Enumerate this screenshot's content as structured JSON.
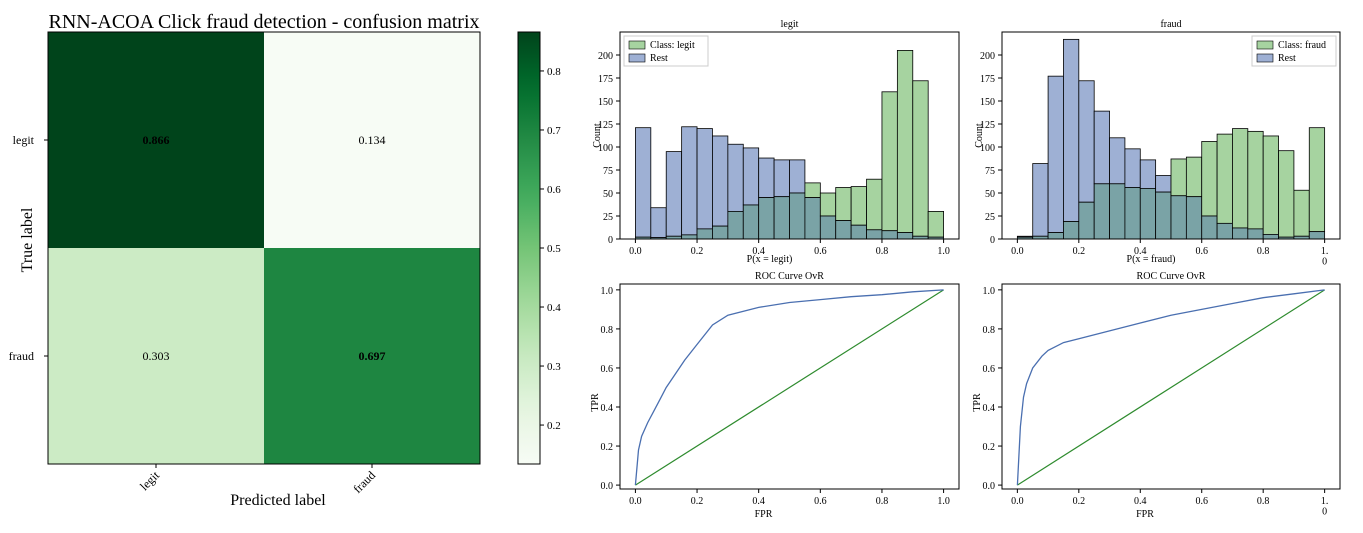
{
  "colors": {
    "legit_fill": "#a6d3a0",
    "rest_fill": "#9eb0d4",
    "overlap_fill": "#7aa3a6",
    "roc_line": "#4a6fb0",
    "diag_line": "#2e8b2e",
    "cm_low": "#f5fbf3",
    "cm_high": "#00441b"
  },
  "chart_data": [
    {
      "type": "heatmap",
      "title": "RNN-ACOA Click fraud detection -  confusion matrix",
      "xlabel": "Predicted label",
      "ylabel": "True label",
      "x_categories": [
        "legit",
        "fraud"
      ],
      "y_categories": [
        "legit",
        "fraud"
      ],
      "values": [
        [
          0.866,
          0.134
        ],
        [
          0.303,
          0.697
        ]
      ],
      "cell_labels": [
        [
          "0.866",
          "0.134"
        ],
        [
          "0.303",
          "0.697"
        ]
      ],
      "colorbar": {
        "range": [
          0.134,
          0.866
        ],
        "ticks": [
          0.2,
          0.3,
          0.4,
          0.5,
          0.6,
          0.7,
          0.8
        ],
        "tick_labels": [
          "0.2",
          "0.3",
          "0.4",
          "0.5",
          "0.6",
          "0.7",
          "0.8"
        ],
        "colormap": "Greens"
      }
    },
    {
      "type": "bar",
      "title": "legit",
      "xlabel": "P(x = legit)",
      "ylabel": "Count",
      "xlim": [
        -0.05,
        1.05
      ],
      "ylim": [
        0,
        2250
      ],
      "x_ticks": [
        0,
        0.2,
        0.4,
        0.6,
        0.8,
        1
      ],
      "x_tick_labels": [
        "0.0",
        "0.2",
        "0.4",
        "0.6",
        "0.8",
        "1.0"
      ],
      "y_ticks": [
        0,
        25,
        50,
        75,
        100,
        125,
        150,
        175,
        200
      ],
      "y_tick_labels": [
        "0",
        "25",
        "50",
        "75",
        "100",
        "125",
        "150",
        "175",
        "200"
      ],
      "y_tick_positions": [
        0,
        250,
        500,
        750,
        1000,
        1250,
        1500,
        1750,
        2000
      ],
      "bin_edges": [
        0,
        0.05,
        0.1,
        0.15,
        0.2,
        0.25,
        0.3,
        0.35,
        0.4,
        0.45,
        0.5,
        0.55,
        0.6,
        0.65,
        0.7,
        0.75,
        0.8,
        0.85,
        0.9,
        0.95,
        1.0
      ],
      "legend_position": "top-left",
      "series": [
        {
          "name": "Class: legit",
          "values": [
            20,
            15,
            30,
            45,
            110,
            140,
            300,
            370,
            450,
            460,
            500,
            610,
            500,
            560,
            570,
            650,
            1600,
            2050,
            1720,
            300
          ]
        },
        {
          "name": "Rest",
          "values": [
            1210,
            340,
            950,
            1220,
            1200,
            1120,
            1030,
            990,
            880,
            860,
            860,
            450,
            250,
            200,
            150,
            100,
            90,
            70,
            30,
            20
          ]
        }
      ]
    },
    {
      "type": "bar",
      "title": "fraud",
      "xlabel": "P(x = fraud)",
      "ylabel": "Count",
      "xlim": [
        -0.05,
        1.05
      ],
      "ylim": [
        0,
        2250
      ],
      "x_ticks": [
        0,
        0.2,
        0.4,
        0.6,
        0.8,
        1
      ],
      "x_tick_labels": [
        "0.0",
        "0.2",
        "0.4",
        "0.6",
        "0.8",
        "1.\n0"
      ],
      "y_ticks": [
        0,
        25,
        50,
        75,
        100,
        125,
        150,
        175,
        200
      ],
      "y_tick_labels": [
        "0",
        "25",
        "50",
        "75",
        "100",
        "125",
        "150",
        "175",
        "200"
      ],
      "y_tick_positions": [
        0,
        250,
        500,
        750,
        1000,
        1250,
        1500,
        1750,
        2000
      ],
      "bin_edges": [
        0,
        0.05,
        0.1,
        0.15,
        0.2,
        0.25,
        0.3,
        0.35,
        0.4,
        0.45,
        0.5,
        0.55,
        0.6,
        0.65,
        0.7,
        0.75,
        0.8,
        0.85,
        0.9,
        0.95,
        1.0
      ],
      "legend_position": "top-right",
      "series": [
        {
          "name": "Class: fraud",
          "values": [
            20,
            30,
            70,
            190,
            400,
            600,
            600,
            560,
            550,
            510,
            870,
            890,
            1060,
            1140,
            1200,
            1170,
            1120,
            960,
            530,
            1210
          ]
        },
        {
          "name": "Rest",
          "values": [
            30,
            820,
            1770,
            2170,
            1720,
            1390,
            1100,
            980,
            860,
            690,
            470,
            460,
            250,
            170,
            120,
            110,
            50,
            20,
            30,
            80
          ]
        }
      ]
    },
    {
      "type": "line",
      "title": "ROC Curve OvR",
      "xlabel": "FPR",
      "ylabel": "TPR",
      "xlim": [
        -0.05,
        1.05
      ],
      "ylim": [
        -0.02,
        1.03
      ],
      "x_ticks": [
        0,
        0.2,
        0.4,
        0.6,
        0.8,
        1
      ],
      "x_tick_labels": [
        "0.0",
        "0.2",
        "0.4",
        "0.6",
        "0.8",
        "1.0"
      ],
      "y_ticks": [
        0,
        0.2,
        0.4,
        0.6,
        0.8,
        1
      ],
      "y_tick_labels": [
        "0.0",
        "0.2",
        "0.4",
        "0.6",
        "0.8",
        "1.0"
      ],
      "series": [
        {
          "x": [
            0,
            0.01,
            0.02,
            0.04,
            0.06,
            0.08,
            0.1,
            0.13,
            0.16,
            0.2,
            0.25,
            0.3,
            0.4,
            0.5,
            0.6,
            0.7,
            0.8,
            0.9,
            1.0
          ],
          "y": [
            0,
            0.18,
            0.25,
            0.32,
            0.38,
            0.44,
            0.5,
            0.57,
            0.64,
            0.72,
            0.82,
            0.87,
            0.91,
            0.935,
            0.95,
            0.965,
            0.975,
            0.99,
            1.0
          ]
        },
        {
          "x": [
            0,
            1
          ],
          "y": [
            0,
            1
          ]
        }
      ]
    },
    {
      "type": "line",
      "title": "ROC Curve OvR",
      "xlabel": "FPR",
      "ylabel": "TPR",
      "xlim": [
        -0.05,
        1.05
      ],
      "ylim": [
        -0.02,
        1.03
      ],
      "x_ticks": [
        0,
        0.2,
        0.4,
        0.6,
        0.8,
        1
      ],
      "x_tick_labels": [
        "0.0",
        "0.2",
        "0.4",
        "0.6",
        "0.8",
        "1.\n0"
      ],
      "y_ticks": [
        0,
        0.2,
        0.4,
        0.6,
        0.8,
        1
      ],
      "y_tick_labels": [
        "0.0",
        "0.2",
        "0.4",
        "0.6",
        "0.8",
        "1.0"
      ],
      "series": [
        {
          "x": [
            0,
            0.01,
            0.02,
            0.03,
            0.05,
            0.08,
            0.1,
            0.15,
            0.2,
            0.3,
            0.4,
            0.5,
            0.6,
            0.7,
            0.8,
            0.9,
            1.0
          ],
          "y": [
            0,
            0.3,
            0.45,
            0.52,
            0.6,
            0.66,
            0.69,
            0.73,
            0.75,
            0.79,
            0.83,
            0.87,
            0.9,
            0.93,
            0.96,
            0.98,
            1.0
          ]
        },
        {
          "x": [
            0,
            1
          ],
          "y": [
            0,
            1
          ]
        }
      ]
    }
  ]
}
